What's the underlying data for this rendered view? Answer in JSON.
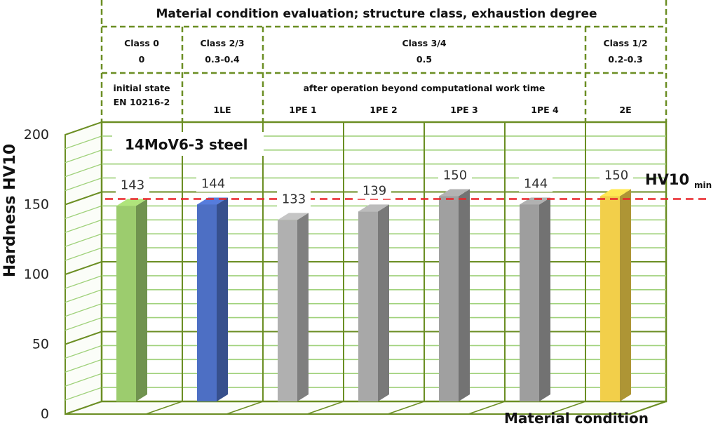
{
  "chart_data": {
    "type": "bar",
    "title": "Material condition evaluation; structure class, exhaustion degree",
    "annotation": "14MoV6-3 steel",
    "xlabel": "Material condition",
    "ylabel": "Hardness HV10",
    "ylim": [
      0,
      200
    ],
    "yticks": [
      "0",
      "50",
      "100",
      "150",
      "200"
    ],
    "grid": true,
    "reference_line": {
      "value": 145,
      "label": "HV10",
      "label_sub": "min",
      "color": "#e8262b",
      "style": "dashed"
    },
    "header_groups": [
      {
        "class_label": "Class 0",
        "degree": "0",
        "desc": "initial state",
        "desc2": "EN 10216-2"
      },
      {
        "class_label": "Class 2/3",
        "degree": "0.3-0.4",
        "desc": "",
        "desc2": ""
      },
      {
        "class_label": "Class 3/4",
        "degree": "0.5",
        "desc": "after operation beyond computational work time",
        "desc2": ""
      },
      {
        "class_label": "Class 1/2",
        "degree": "0.2-0.3",
        "desc": "",
        "desc2": ""
      }
    ],
    "categories": [
      "",
      "1LE",
      "1PE 1",
      "1PE 2",
      "1PE 3",
      "1PE 4",
      "2E"
    ],
    "values": [
      143,
      144,
      133,
      139,
      150,
      144,
      150
    ],
    "value_labels": [
      "143",
      "144",
      "133",
      "139",
      "150",
      "144",
      "150"
    ],
    "bar_colors": [
      "#9ccc6e",
      "#4d6fc4",
      "#b0b0b0",
      "#a8a8a8",
      "#a0a0a0",
      "#9e9e9e",
      "#f2cf4a"
    ]
  }
}
